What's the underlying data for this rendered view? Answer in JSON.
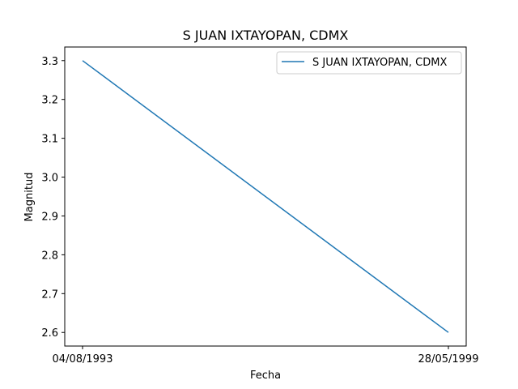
{
  "chart_data": {
    "type": "line",
    "title": "S JUAN IXTAYOPAN, CDMX",
    "xlabel": "Fecha",
    "ylabel": "Magnitud",
    "x": [
      "04/08/1993",
      "28/05/1999"
    ],
    "series": [
      {
        "name": "S JUAN IXTAYOPAN, CDMX",
        "values": [
          3.3,
          2.6
        ],
        "color": "#1f77b4"
      }
    ],
    "yticks": [
      "2.6",
      "2.7",
      "2.8",
      "2.9",
      "3.0",
      "3.1",
      "3.2",
      "3.3"
    ],
    "ylim": [
      2.565,
      3.335
    ],
    "grid": false,
    "legend_position": "top-right"
  }
}
